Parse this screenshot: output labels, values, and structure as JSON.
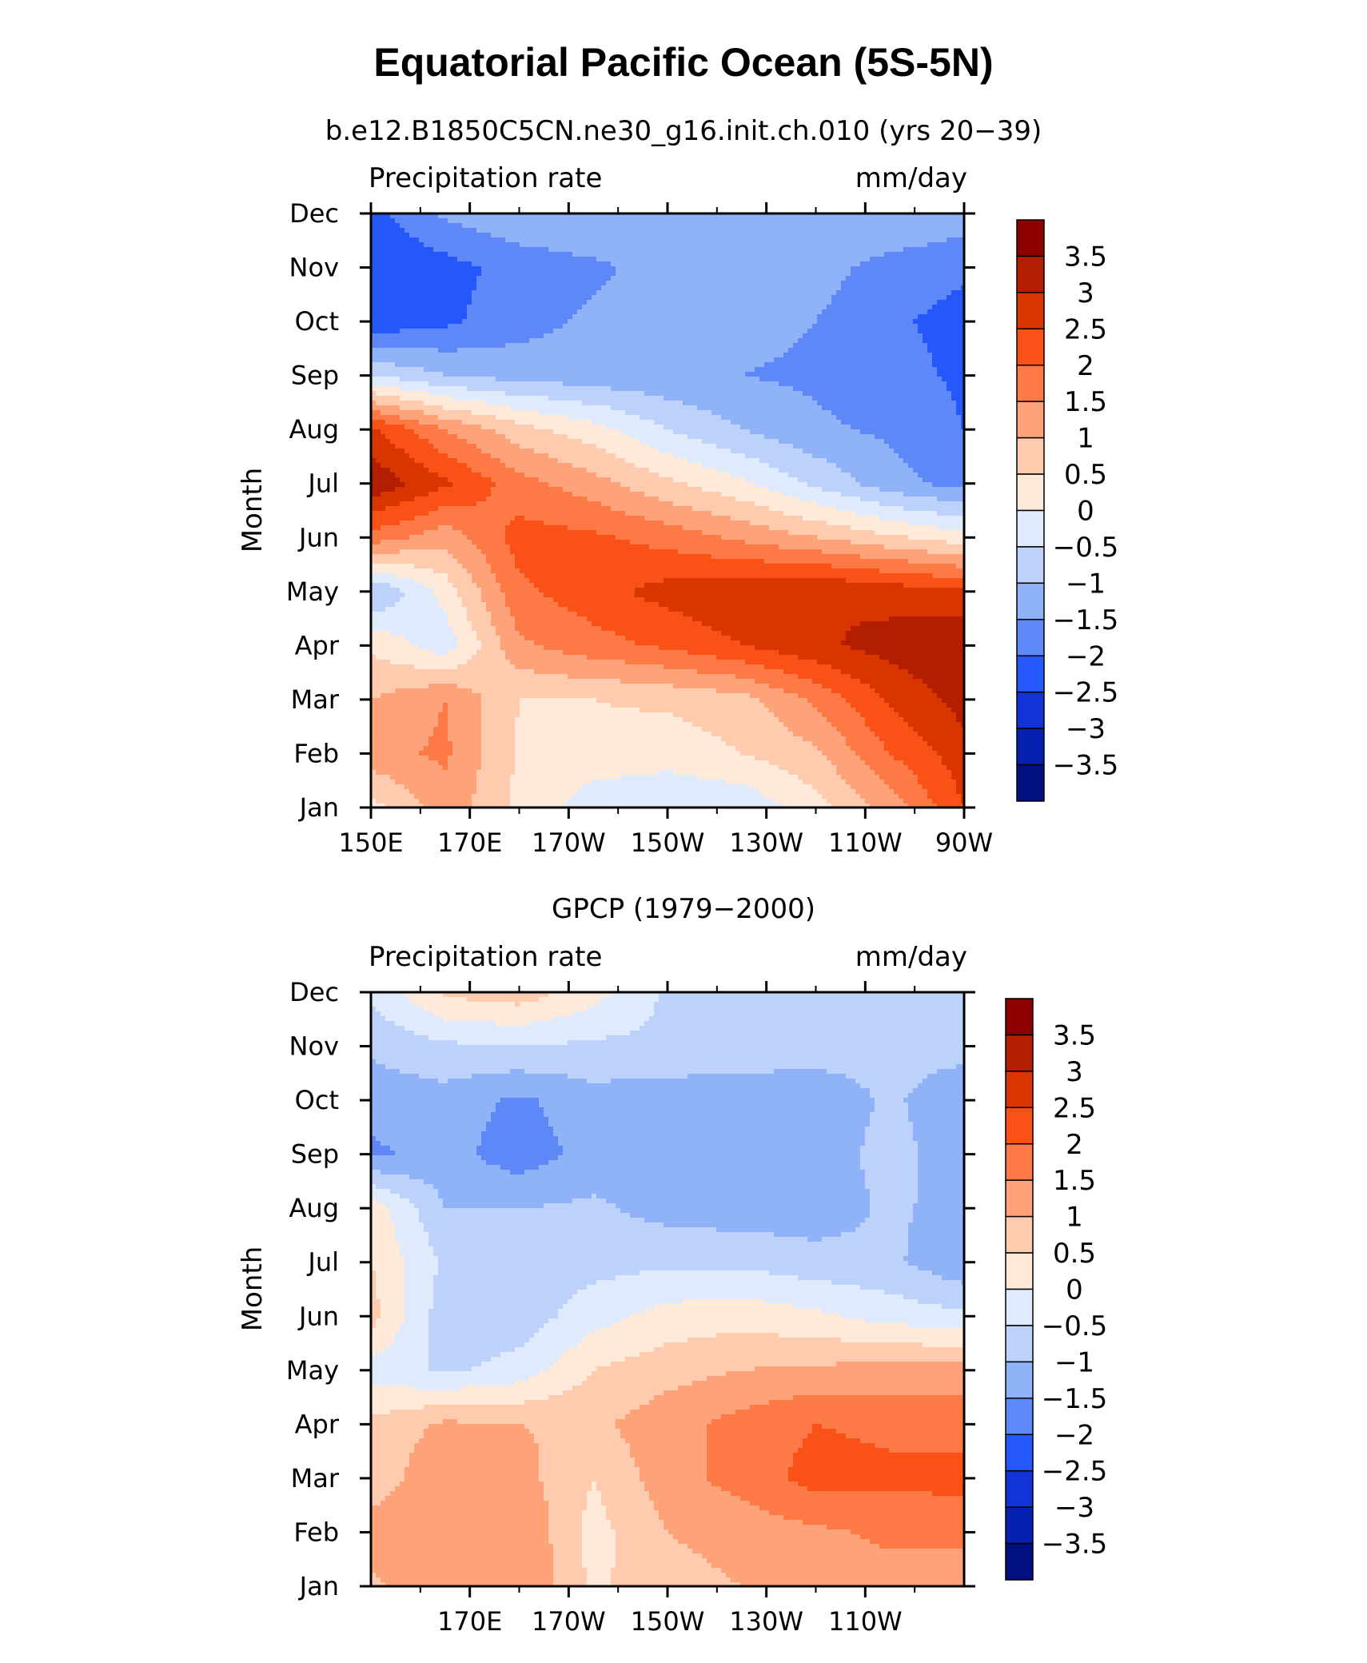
{
  "title": "Equatorial Pacific Ocean (5S-5N)",
  "colorbar": {
    "levels": [
      "3.5",
      "3",
      "2.5",
      "2",
      "1.5",
      "1",
      "0.5",
      "0",
      "−0.5",
      "−1",
      "−1.5",
      "−2",
      "−2.5",
      "−3",
      "−3.5"
    ],
    "colors": [
      "#8c0000",
      "#b31e00",
      "#d93500",
      "#fa5216",
      "#fd7a46",
      "#fea27a",
      "#fecbae",
      "#ffe9d8",
      "#dfeafd",
      "#bcd2fb",
      "#8fb2f8",
      "#5e88f7",
      "#2458fa",
      "#1233d8",
      "#0620b0",
      "#020f80"
    ]
  },
  "chart_data": [
    {
      "type": "heatmap",
      "subtitle": "b.e12.B1850C5CN.ne30_g16.init.ch.010 (yrs 20−39)",
      "left_string": "Precipitation rate",
      "right_string": "mm/day",
      "ylabel": "Month",
      "x_tick_labels": [
        "150E",
        "170E",
        "170W",
        "150W",
        "130W",
        "110W",
        "90W"
      ],
      "y_tick_labels": [
        "Jan",
        "Feb",
        "Mar",
        "Apr",
        "May",
        "Jun",
        "Jul",
        "Aug",
        "Sep",
        "Oct",
        "Nov",
        "Dec"
      ],
      "xlim": [
        150,
        270
      ],
      "ylim": [
        1,
        12
      ],
      "x": [
        150,
        165,
        180,
        195,
        210,
        225,
        240,
        255,
        270
      ],
      "y": [
        "Jan",
        "Feb",
        "Mar",
        "Apr",
        "May",
        "Jun",
        "Jul",
        "Aug",
        "Sep",
        "Oct",
        "Nov",
        "Dec"
      ],
      "z": [
        [
          0.3,
          1.3,
          0.4,
          -0.3,
          -0.4,
          -0.4,
          0.3,
          1.2,
          2.5
        ],
        [
          1.3,
          1.6,
          0.4,
          0.3,
          0.2,
          0.5,
          0.9,
          2.0,
          2.8
        ],
        [
          1.0,
          1.5,
          0.5,
          0.5,
          0.6,
          0.8,
          1.6,
          2.6,
          3.2
        ],
        [
          0.4,
          -0.3,
          1.4,
          1.8,
          2.1,
          2.5,
          2.9,
          3.2,
          3.4
        ],
        [
          -1.1,
          0.2,
          1.9,
          2.3,
          2.7,
          2.9,
          3.0,
          2.8,
          2.6
        ],
        [
          1.8,
          1.2,
          2.2,
          2.1,
          1.8,
          1.4,
          1.0,
          0.6,
          0.2
        ],
        [
          3.4,
          2.6,
          1.7,
          1.2,
          0.6,
          0.1,
          -0.6,
          -1.3,
          -1.7
        ],
        [
          2.6,
          1.5,
          0.7,
          0.2,
          -0.5,
          -1.0,
          -1.4,
          -1.6,
          -2.0
        ],
        [
          -0.5,
          -1.0,
          -1.2,
          -1.3,
          -1.4,
          -1.5,
          -1.6,
          -1.8,
          -2.1
        ],
        [
          -2.4,
          -2.1,
          -1.7,
          -1.4,
          -1.2,
          -1.3,
          -1.5,
          -1.9,
          -2.2
        ],
        [
          -2.5,
          -2.2,
          -1.8,
          -1.6,
          -1.3,
          -1.2,
          -1.3,
          -1.7,
          -1.9
        ],
        [
          -2.2,
          -1.4,
          -1.1,
          -1.0,
          -1.0,
          -1.0,
          -1.0,
          -1.0,
          -1.2
        ]
      ]
    },
    {
      "type": "heatmap",
      "subtitle": "GPCP (1979−2000)",
      "left_string": "Precipitation rate",
      "right_string": "mm/day",
      "ylabel": "Month",
      "x_tick_labels": [
        "170E",
        "170W",
        "150W",
        "130W",
        "110W"
      ],
      "y_tick_labels": [
        "Jan",
        "Feb",
        "Mar",
        "Apr",
        "May",
        "Jun",
        "Jul",
        "Aug",
        "Sep",
        "Oct",
        "Nov",
        "Dec"
      ],
      "xlim": [
        150,
        270
      ],
      "ylim": [
        1,
        12
      ],
      "x": [
        150,
        165,
        180,
        195,
        210,
        225,
        240,
        255,
        270
      ],
      "y": [
        "Jan",
        "Feb",
        "Mar",
        "Apr",
        "May",
        "Jun",
        "Jul",
        "Aug",
        "Sep",
        "Oct",
        "Nov",
        "Dec"
      ],
      "z": [
        [
          0.9,
          1.3,
          1.5,
          0.4,
          0.8,
          1.0,
          1.2,
          1.3,
          1.3
        ],
        [
          1.3,
          1.5,
          1.5,
          0.3,
          1.0,
          1.2,
          1.4,
          1.6,
          1.6
        ],
        [
          0.6,
          1.5,
          1.2,
          0.5,
          1.3,
          1.7,
          2.2,
          2.1,
          2.2
        ],
        [
          0.6,
          1.1,
          1.0,
          0.9,
          1.3,
          1.7,
          2.0,
          1.9,
          1.8
        ],
        [
          -0.2,
          -0.6,
          -0.3,
          0.5,
          0.8,
          1.0,
          1.1,
          1.2,
          1.2
        ],
        [
          0.7,
          -0.8,
          -0.8,
          -0.2,
          0.2,
          0.3,
          0.1,
          -0.2,
          -0.4
        ],
        [
          0.5,
          -0.6,
          -0.8,
          -0.7,
          -0.6,
          -0.6,
          -0.8,
          -0.9,
          -1.4
        ],
        [
          0.3,
          -1.0,
          -1.0,
          -0.9,
          -1.2,
          -1.3,
          -1.3,
          -0.9,
          -1.2
        ],
        [
          -1.6,
          -1.3,
          -1.8,
          -1.3,
          -1.4,
          -1.3,
          -1.3,
          -0.8,
          -1.3
        ],
        [
          -1.3,
          -1.2,
          -1.6,
          -1.2,
          -1.3,
          -1.3,
          -1.4,
          -0.9,
          -1.4
        ],
        [
          -0.9,
          -0.6,
          -0.5,
          -0.6,
          -0.6,
          -0.7,
          -0.7,
          -0.8,
          -0.8
        ],
        [
          -0.4,
          0.6,
          0.8,
          0.2,
          -0.6,
          -0.6,
          -0.6,
          -0.7,
          -0.7
        ]
      ]
    }
  ]
}
